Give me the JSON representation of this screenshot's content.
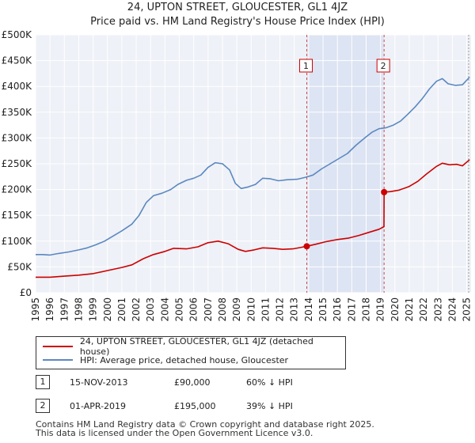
{
  "title_line1": "24, UPTON STREET, GLOUCESTER, GL1 4JZ",
  "title_line2": "Price paid vs. HM Land Registry's House Price Index (HPI)",
  "chart_data": {
    "type": "line",
    "title": "24, UPTON STREET, GLOUCESTER, GL1 4JZ — Price paid vs. HM Land Registry's House Price Index (HPI)",
    "xlabel": "",
    "ylabel": "",
    "xlim": [
      1995,
      2025.3
    ],
    "ylim": [
      0,
      500000
    ],
    "grid": true,
    "x_ticks": [
      "1995",
      "1996",
      "1997",
      "1998",
      "1999",
      "2000",
      "2001",
      "2002",
      "2003",
      "2004",
      "2005",
      "2006",
      "2007",
      "2008",
      "2009",
      "2010",
      "2011",
      "2012",
      "2013",
      "2014",
      "2015",
      "2016",
      "2017",
      "2018",
      "2019",
      "2020",
      "2021",
      "2022",
      "2023",
      "2024",
      "2025"
    ],
    "y_ticks": [
      {
        "value": 0,
        "label": "£0"
      },
      {
        "value": 50000,
        "label": "£50K"
      },
      {
        "value": 100000,
        "label": "£100K"
      },
      {
        "value": 150000,
        "label": "£150K"
      },
      {
        "value": 200000,
        "label": "£200K"
      },
      {
        "value": 250000,
        "label": "£250K"
      },
      {
        "value": 300000,
        "label": "£300K"
      },
      {
        "value": 350000,
        "label": "£350K"
      },
      {
        "value": 400000,
        "label": "£400K"
      },
      {
        "value": 450000,
        "label": "£450K"
      },
      {
        "value": 500000,
        "label": "£500K"
      }
    ],
    "shaded_range": [
      2013.87,
      2019.25
    ],
    "markers": [
      {
        "label": "1",
        "x": 2013.87,
        "y": 90000
      },
      {
        "label": "2",
        "x": 2019.25,
        "y": 195000
      }
    ],
    "series": [
      {
        "name": "24, UPTON STREET, GLOUCESTER, GL1 4JZ (detached house)",
        "color": "#cc0000",
        "points": [
          [
            1995.0,
            30000
          ],
          [
            1996.0,
            30000
          ],
          [
            1997.0,
            32000
          ],
          [
            1998.0,
            34000
          ],
          [
            1999.0,
            37000
          ],
          [
            2000.0,
            43000
          ],
          [
            2001.0,
            49000
          ],
          [
            2001.7,
            54000
          ],
          [
            2002.5,
            66000
          ],
          [
            2003.2,
            74000
          ],
          [
            2004.0,
            80000
          ],
          [
            2004.6,
            86000
          ],
          [
            2005.5,
            85000
          ],
          [
            2006.3,
            89000
          ],
          [
            2007.0,
            97000
          ],
          [
            2007.7,
            100000
          ],
          [
            2008.4,
            95000
          ],
          [
            2009.1,
            84000
          ],
          [
            2009.6,
            80000
          ],
          [
            2010.2,
            83000
          ],
          [
            2010.8,
            87000
          ],
          [
            2011.5,
            86000
          ],
          [
            2012.2,
            84000
          ],
          [
            2012.9,
            85000
          ],
          [
            2013.5,
            88000
          ],
          [
            2013.87,
            90000
          ],
          [
            2014.5,
            94000
          ],
          [
            2015.2,
            99000
          ],
          [
            2016.0,
            103000
          ],
          [
            2016.8,
            106000
          ],
          [
            2017.5,
            111000
          ],
          [
            2018.2,
            117000
          ],
          [
            2018.9,
            123000
          ],
          [
            2019.24,
            128000
          ],
          [
            2019.25,
            195000
          ],
          [
            2019.7,
            196000
          ],
          [
            2020.3,
            199000
          ],
          [
            2021.0,
            206000
          ],
          [
            2021.6,
            216000
          ],
          [
            2022.2,
            230000
          ],
          [
            2022.9,
            245000
          ],
          [
            2023.3,
            251000
          ],
          [
            2023.8,
            248000
          ],
          [
            2024.3,
            249000
          ],
          [
            2024.7,
            246000
          ],
          [
            2025.2,
            258000
          ]
        ]
      },
      {
        "name": "HPI: Average price, detached house, Gloucester",
        "color": "#5b88c0",
        "points": [
          [
            1995.0,
            74000
          ],
          [
            1995.5,
            74000
          ],
          [
            1996.0,
            73000
          ],
          [
            1996.6,
            76000
          ],
          [
            1997.3,
            79000
          ],
          [
            1998.0,
            83000
          ],
          [
            1998.6,
            87000
          ],
          [
            1999.2,
            93000
          ],
          [
            1999.8,
            100000
          ],
          [
            2000.4,
            110000
          ],
          [
            2001.0,
            120000
          ],
          [
            2001.7,
            133000
          ],
          [
            2002.2,
            150000
          ],
          [
            2002.7,
            175000
          ],
          [
            2003.2,
            188000
          ],
          [
            2003.8,
            193000
          ],
          [
            2004.4,
            200000
          ],
          [
            2004.9,
            210000
          ],
          [
            2005.5,
            218000
          ],
          [
            2006.0,
            222000
          ],
          [
            2006.5,
            228000
          ],
          [
            2007.0,
            243000
          ],
          [
            2007.5,
            252000
          ],
          [
            2008.0,
            250000
          ],
          [
            2008.5,
            238000
          ],
          [
            2008.9,
            212000
          ],
          [
            2009.3,
            202000
          ],
          [
            2009.8,
            205000
          ],
          [
            2010.3,
            210000
          ],
          [
            2010.8,
            222000
          ],
          [
            2011.3,
            221000
          ],
          [
            2011.9,
            217000
          ],
          [
            2012.5,
            219000
          ],
          [
            2013.2,
            220000
          ],
          [
            2013.8,
            224000
          ],
          [
            2014.3,
            228000
          ],
          [
            2014.9,
            240000
          ],
          [
            2015.5,
            250000
          ],
          [
            2016.1,
            260000
          ],
          [
            2016.7,
            270000
          ],
          [
            2017.3,
            286000
          ],
          [
            2017.9,
            300000
          ],
          [
            2018.4,
            311000
          ],
          [
            2018.9,
            318000
          ],
          [
            2019.4,
            320000
          ],
          [
            2019.9,
            325000
          ],
          [
            2020.4,
            333000
          ],
          [
            2020.9,
            346000
          ],
          [
            2021.4,
            360000
          ],
          [
            2021.9,
            376000
          ],
          [
            2022.4,
            395000
          ],
          [
            2022.9,
            410000
          ],
          [
            2023.3,
            415000
          ],
          [
            2023.7,
            405000
          ],
          [
            2024.2,
            402000
          ],
          [
            2024.7,
            403000
          ],
          [
            2025.2,
            418000
          ]
        ]
      }
    ]
  },
  "legend": {
    "entries": [
      {
        "label": "24, UPTON STREET, GLOUCESTER, GL1 4JZ (detached house)",
        "color": "#cc0000"
      },
      {
        "label": "HPI: Average price, detached house, Gloucester",
        "color": "#5b88c0"
      }
    ]
  },
  "transactions": [
    {
      "num": "1",
      "date": "15-NOV-2013",
      "price": "£90,000",
      "hpi": "60% ↓ HPI"
    },
    {
      "num": "2",
      "date": "01-APR-2019",
      "price": "£195,000",
      "hpi": "39% ↓ HPI"
    }
  ],
  "footer": {
    "line1": "Contains HM Land Registry data © Crown copyright and database right 2025.",
    "line2": "This data is licensed under the Open Government Licence v3.0."
  }
}
